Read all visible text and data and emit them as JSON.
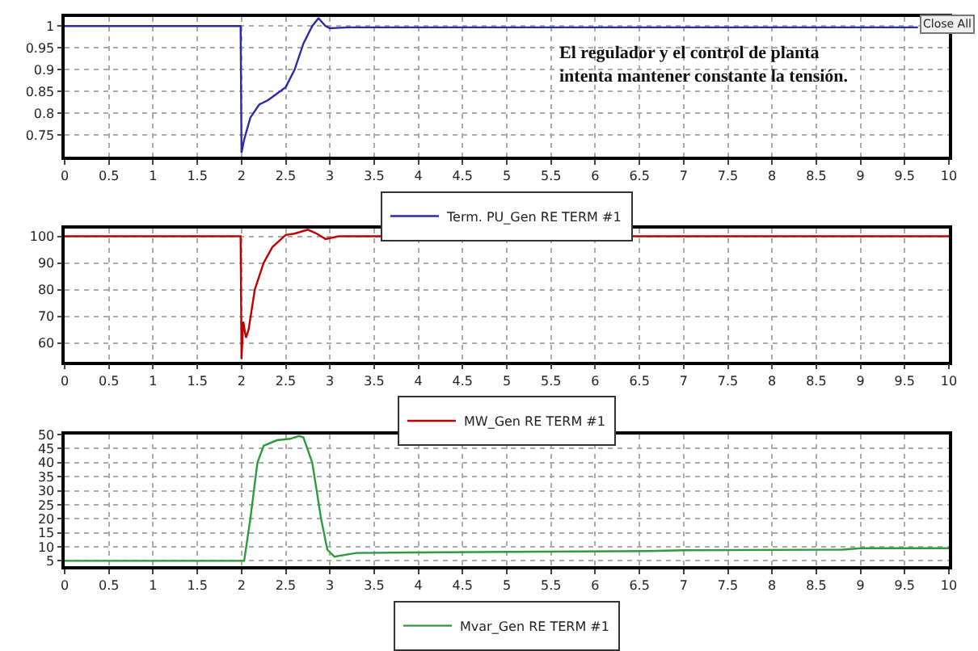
{
  "chart_data": [
    {
      "type": "line",
      "xlim": [
        0,
        10
      ],
      "xticks": [
        0,
        0.5,
        1,
        1.5,
        2,
        2.5,
        3,
        3.5,
        4,
        4.5,
        5,
        5.5,
        6,
        6.5,
        7,
        7.5,
        8,
        8.5,
        9,
        9.5,
        10
      ],
      "ylim": [
        0.7,
        1.02
      ],
      "yticks": [
        0.75,
        0.8,
        0.85,
        0.9,
        0.95,
        1
      ],
      "grid": true,
      "legend": "bottom",
      "annotations": [
        "El regulador y el control de planta\nintenta mantener constante la tensión.",
        "Close All"
      ],
      "series": [
        {
          "name": "Term. PU_Gen RE TERM #1",
          "color": "#2b2ba8",
          "x": [
            0,
            1.99,
            2.0,
            2.03,
            2.1,
            2.2,
            2.3,
            2.4,
            2.5,
            2.6,
            2.7,
            2.8,
            2.87,
            2.95,
            3.0,
            3.2,
            9.65
          ],
          "values": [
            1,
            1,
            0.71,
            0.74,
            0.79,
            0.82,
            0.83,
            0.845,
            0.86,
            0.9,
            0.96,
            1.0,
            1.018,
            1.0,
            0.995,
            0.997,
            0.997
          ]
        }
      ]
    },
    {
      "type": "line",
      "xlim": [
        0,
        10
      ],
      "xticks": [
        0,
        0.5,
        1,
        1.5,
        2,
        2.5,
        3,
        3.5,
        4,
        4.5,
        5,
        5.5,
        6,
        6.5,
        7,
        7.5,
        8,
        8.5,
        9,
        9.5,
        10
      ],
      "ylim": [
        53,
        103
      ],
      "yticks": [
        60,
        70,
        80,
        90,
        100
      ],
      "grid": true,
      "legend": "bottom",
      "series": [
        {
          "name": "MW_Gen RE TERM #1",
          "color": "#c00000",
          "x": [
            0,
            1.99,
            2.0,
            2.02,
            2.05,
            2.08,
            2.15,
            2.25,
            2.35,
            2.5,
            2.6,
            2.75,
            2.85,
            2.95,
            3.1,
            10
          ],
          "values": [
            100,
            100,
            54,
            68,
            62,
            65,
            80,
            90,
            96,
            100.5,
            101,
            102.5,
            101,
            99,
            100,
            100
          ]
        }
      ]
    },
    {
      "type": "line",
      "xlim": [
        0,
        10
      ],
      "xticks": [
        0,
        0.5,
        1,
        1.5,
        2,
        2.5,
        3,
        3.5,
        4,
        4.5,
        5,
        5.5,
        6,
        6.5,
        7,
        7.5,
        8,
        8.5,
        9,
        9.5,
        10
      ],
      "ylim": [
        3,
        50
      ],
      "yticks": [
        5,
        10,
        15,
        20,
        25,
        30,
        35,
        40,
        45,
        50
      ],
      "grid": true,
      "legend": "bottom",
      "series": [
        {
          "name": "Mvar_Gen RE TERM #1",
          "color": "#2e9a3e",
          "x": [
            0,
            2.03,
            2.1,
            2.18,
            2.25,
            2.4,
            2.55,
            2.65,
            2.7,
            2.8,
            2.9,
            2.97,
            3.05,
            3.3,
            4,
            5,
            6.6,
            7,
            8.8,
            9,
            10
          ],
          "values": [
            5,
            5,
            20,
            40,
            46,
            48,
            48.5,
            49.5,
            49,
            40,
            20,
            9,
            6.5,
            7.8,
            8,
            8.2,
            8.5,
            8.8,
            9,
            9.5,
            9.5
          ]
        }
      ]
    }
  ]
}
